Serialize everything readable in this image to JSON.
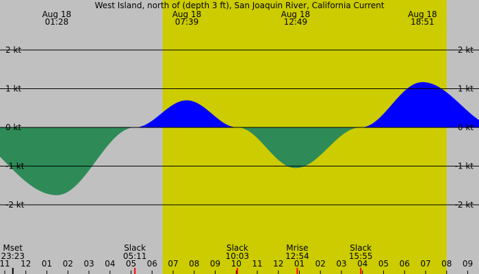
{
  "chart_data": {
    "type": "area",
    "title": "West Island, north of (depth 3 ft), San Joaquin River, California Current",
    "xlabel": "",
    "ylabel": "",
    "units": "kt",
    "x_range_hours": [
      -1.0,
      21.75
    ],
    "ylim": [
      -3.3,
      3.3
    ],
    "y_ticks": [
      {
        "value": 2,
        "label": "2 kt"
      },
      {
        "value": 1,
        "label": "1 kt"
      },
      {
        "value": 0,
        "label": "0 kt"
      },
      {
        "value": -1,
        "label": "-1 kt"
      },
      {
        "value": -2,
        "label": "-2 kt"
      }
    ],
    "daylight_hours": [
      6.5,
      20.0
    ],
    "x_ticks": [
      {
        "hour": -1,
        "label": "11"
      },
      {
        "hour": 0,
        "label": "12"
      },
      {
        "hour": 1,
        "label": "01"
      },
      {
        "hour": 2,
        "label": "02"
      },
      {
        "hour": 3,
        "label": "03"
      },
      {
        "hour": 4,
        "label": "04"
      },
      {
        "hour": 5,
        "label": "05"
      },
      {
        "hour": 6,
        "label": "06"
      },
      {
        "hour": 7,
        "label": "07"
      },
      {
        "hour": 8,
        "label": "08"
      },
      {
        "hour": 9,
        "label": "09"
      },
      {
        "hour": 10,
        "label": "10"
      },
      {
        "hour": 11,
        "label": "11"
      },
      {
        "hour": 12,
        "label": "12"
      },
      {
        "hour": 13,
        "label": "01"
      },
      {
        "hour": 14,
        "label": "02"
      },
      {
        "hour": 15,
        "label": "03"
      },
      {
        "hour": 16,
        "label": "04"
      },
      {
        "hour": 17,
        "label": "05"
      },
      {
        "hour": 18,
        "label": "06"
      },
      {
        "hour": 19,
        "label": "07"
      },
      {
        "hour": 20,
        "label": "08"
      },
      {
        "hour": 21,
        "label": "09"
      }
    ],
    "tide_events": [
      {
        "hour": -3.5,
        "value": 0.0
      },
      {
        "hour": 1.467,
        "date": "Aug 18",
        "time": "01:28",
        "value": -1.75
      },
      {
        "hour": 5.183,
        "value": 0.0
      },
      {
        "hour": 7.65,
        "date": "Aug 18",
        "time": "07:39",
        "value": 0.7
      },
      {
        "hour": 10.05,
        "value": 0.0
      },
      {
        "hour": 12.817,
        "date": "Aug 18",
        "time": "12:49",
        "value": -1.05
      },
      {
        "hour": 15.917,
        "value": 0.0
      },
      {
        "hour": 18.85,
        "date": "Aug 18",
        "time": "18:51",
        "value": 1.17
      },
      {
        "hour": 22.5,
        "value": 0.0
      }
    ],
    "bottom_events": [
      {
        "hour": -0.617,
        "name": "Mset",
        "time": "23:23",
        "marker_color": "#000000"
      },
      {
        "hour": 5.183,
        "name": "Slack",
        "time": "05:11",
        "marker_color": "#ff0000"
      },
      {
        "hour": 10.05,
        "name": "Slack",
        "time": "10:03",
        "marker_color": "#ff0000"
      },
      {
        "hour": 12.9,
        "name": "Mrise",
        "time": "12:54",
        "marker_color": "#ff0000"
      },
      {
        "hour": 15.917,
        "name": "Slack",
        "time": "15:55",
        "marker_color": "#ff0000"
      }
    ],
    "colors": {
      "background": "#c0c0c0",
      "daylight": "#cccc00",
      "flood": "#0000ff",
      "ebb": "#2e8b57",
      "grid": "#000000"
    }
  }
}
